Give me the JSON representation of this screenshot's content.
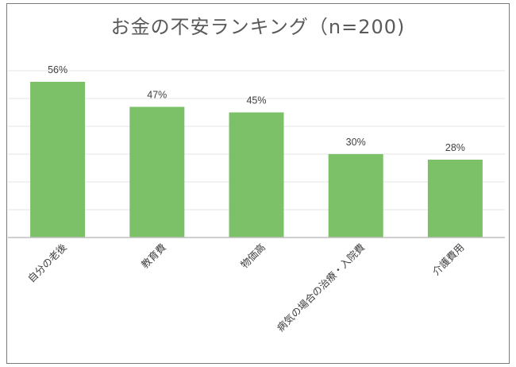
{
  "chart_data": {
    "type": "bar",
    "title": "お金の不安ランキング（n=200)",
    "categories": [
      "自分の老後",
      "教育費",
      "物価高",
      "病気の場合の治療・入院費",
      "介護費用"
    ],
    "values": [
      56,
      47,
      45,
      30,
      28
    ],
    "data_labels": [
      "56%",
      "47%",
      "45%",
      "30%",
      "28%"
    ],
    "ylim": [
      0,
      60
    ],
    "grid": true,
    "bar_color": "#7cc068",
    "grid_color": "#e6e6e6",
    "axis_color": "#bfbfbf"
  }
}
